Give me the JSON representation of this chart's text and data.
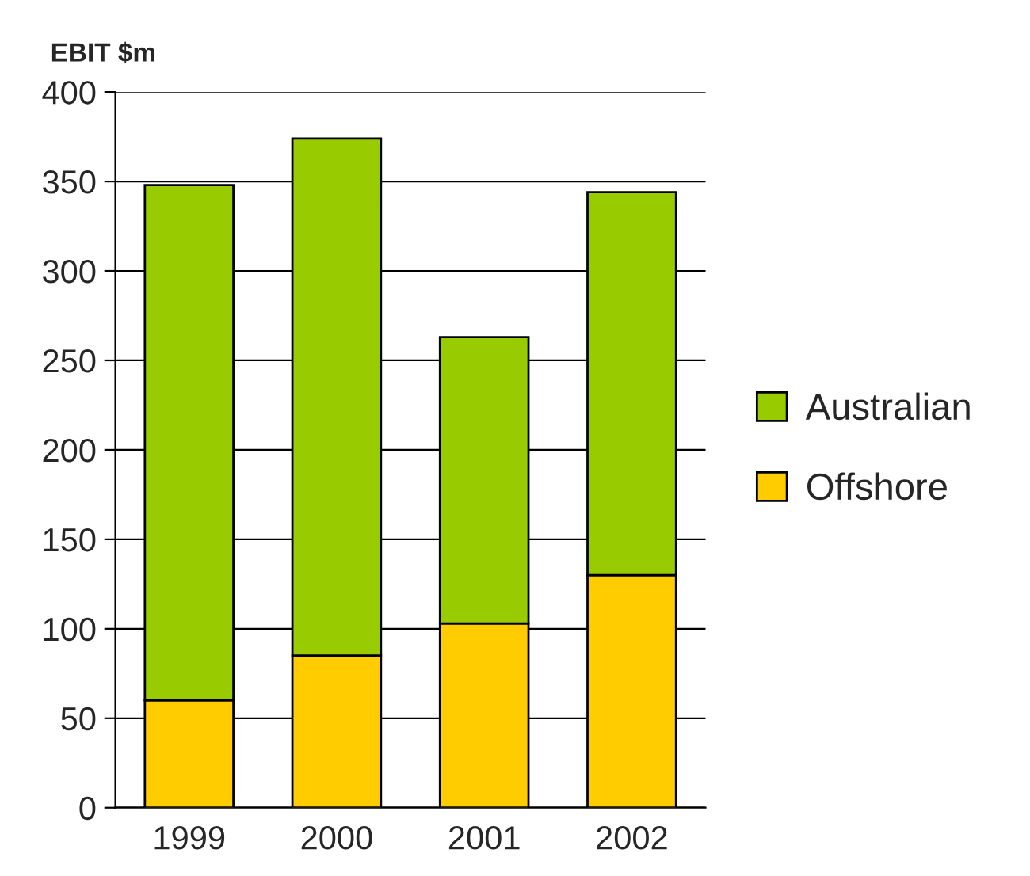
{
  "chart_data": {
    "type": "bar",
    "ylabel": "EBIT $m",
    "categories": [
      "1999",
      "2000",
      "2001",
      "2002"
    ],
    "stacked": true,
    "series": [
      {
        "name": "Offshore",
        "color": "#ffcc00",
        "values": [
          60,
          85,
          103,
          130
        ]
      },
      {
        "name": "Australian",
        "color": "#99cc00",
        "values": [
          288,
          289,
          160,
          214
        ]
      }
    ],
    "ylim": [
      0,
      400
    ],
    "yticks": [
      0,
      50,
      100,
      150,
      200,
      250,
      300,
      350,
      400
    ],
    "grid": "y",
    "legend": "right"
  }
}
